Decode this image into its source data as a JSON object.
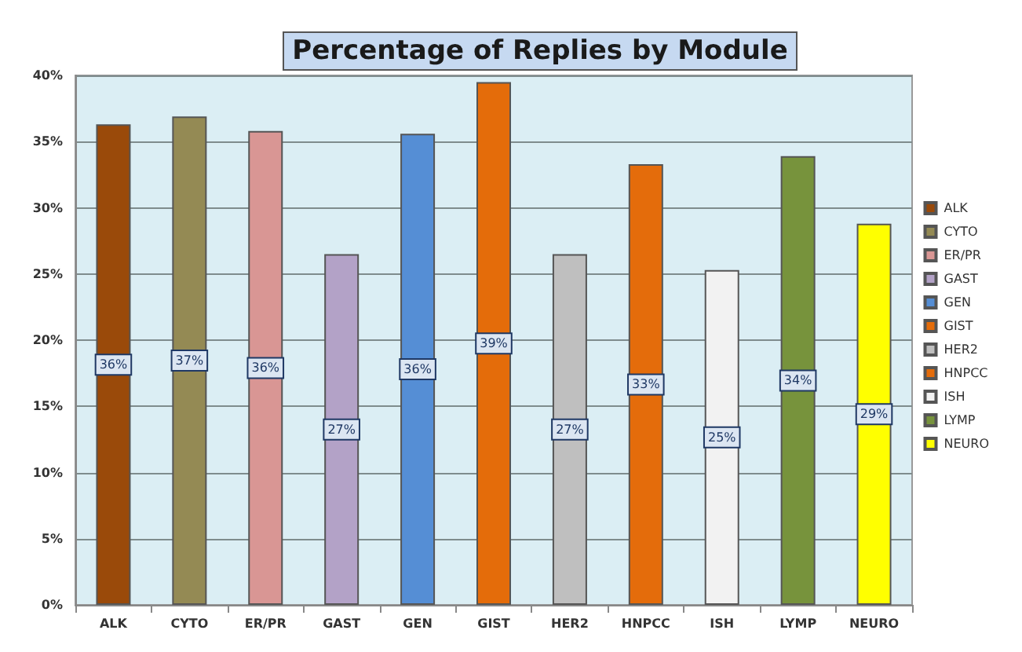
{
  "chart_data": {
    "type": "bar",
    "title": "Percentage of Replies by Module",
    "categories": [
      "ALK",
      "CYTO",
      "ER/PR",
      "GAST",
      "GEN",
      "GIST",
      "HER2",
      "HNPCC",
      "ISH",
      "LYMP",
      "NEURO"
    ],
    "series": [
      {
        "name": "ALK",
        "color": "#9a4a0a",
        "values": [
          36.3,
          null,
          null,
          null,
          null,
          null,
          null,
          null,
          null,
          null,
          null
        ],
        "value_labels": [
          "36%",
          null,
          null,
          null,
          null,
          null,
          null,
          null,
          null,
          null,
          null
        ]
      },
      {
        "name": "CYTO",
        "color": "#948a54",
        "values": [
          null,
          36.9,
          null,
          null,
          null,
          null,
          null,
          null,
          null,
          null,
          null
        ],
        "value_labels": [
          null,
          "37%",
          null,
          null,
          null,
          null,
          null,
          null,
          null,
          null,
          null
        ]
      },
      {
        "name": "ER/PR",
        "color": "#d99694",
        "values": [
          null,
          null,
          35.8,
          null,
          null,
          null,
          null,
          null,
          null,
          null,
          null
        ],
        "value_labels": [
          null,
          null,
          "36%",
          null,
          null,
          null,
          null,
          null,
          null,
          null,
          null
        ]
      },
      {
        "name": "GAST",
        "color": "#b3a2c7",
        "values": [
          null,
          null,
          null,
          26.5,
          null,
          null,
          null,
          null,
          null,
          null,
          null
        ],
        "value_labels": [
          null,
          null,
          null,
          "27%",
          null,
          null,
          null,
          null,
          null,
          null,
          null
        ]
      },
      {
        "name": "GEN",
        "color": "#558ed5",
        "values": [
          null,
          null,
          null,
          null,
          35.6,
          null,
          null,
          null,
          null,
          null,
          null
        ],
        "value_labels": [
          null,
          null,
          null,
          null,
          "36%",
          null,
          null,
          null,
          null,
          null,
          null
        ]
      },
      {
        "name": "GIST",
        "color": "#e46c0a",
        "values": [
          null,
          null,
          null,
          null,
          null,
          39.5,
          null,
          null,
          null,
          null,
          null
        ],
        "value_labels": [
          null,
          null,
          null,
          null,
          null,
          "39%",
          null,
          null,
          null,
          null,
          null
        ]
      },
      {
        "name": "HER2",
        "color": "#bfbfbf",
        "values": [
          null,
          null,
          null,
          null,
          null,
          null,
          26.5,
          null,
          null,
          null,
          null
        ],
        "value_labels": [
          null,
          null,
          null,
          null,
          null,
          null,
          "27%",
          null,
          null,
          null,
          null
        ]
      },
      {
        "name": "HNPCC",
        "color": "#e46c0b",
        "values": [
          null,
          null,
          null,
          null,
          null,
          null,
          null,
          33.3,
          null,
          null,
          null
        ],
        "value_labels": [
          null,
          null,
          null,
          null,
          null,
          null,
          null,
          "33%",
          null,
          null,
          null
        ]
      },
      {
        "name": "ISH",
        "color": "#f2f2f2",
        "values": [
          null,
          null,
          null,
          null,
          null,
          null,
          null,
          null,
          25.3,
          null,
          null
        ],
        "value_labels": [
          null,
          null,
          null,
          null,
          null,
          null,
          null,
          null,
          "25%",
          null,
          null
        ]
      },
      {
        "name": "LYMP",
        "color": "#77933c",
        "values": [
          null,
          null,
          null,
          null,
          null,
          null,
          null,
          null,
          null,
          33.9,
          null
        ],
        "value_labels": [
          null,
          null,
          null,
          null,
          null,
          null,
          null,
          null,
          null,
          "34%",
          null
        ]
      },
      {
        "name": "NEURO",
        "color": "#ffff00",
        "values": [
          null,
          null,
          null,
          null,
          null,
          null,
          null,
          null,
          null,
          null,
          28.8
        ],
        "value_labels": [
          null,
          null,
          null,
          null,
          null,
          null,
          null,
          null,
          null,
          null,
          "29%"
        ]
      }
    ],
    "ylim": [
      0,
      40
    ],
    "yticks": [
      {
        "value": 0,
        "label": "0%"
      },
      {
        "value": 5,
        "label": "5%"
      },
      {
        "value": 10,
        "label": "10%"
      },
      {
        "value": 15,
        "label": "15%"
      },
      {
        "value": 20,
        "label": "20%"
      },
      {
        "value": 25,
        "label": "25%"
      },
      {
        "value": 30,
        "label": "30%"
      },
      {
        "value": 35,
        "label": "35%"
      },
      {
        "value": 40,
        "label": "40%"
      }
    ],
    "grid": "y",
    "legend": "right"
  }
}
